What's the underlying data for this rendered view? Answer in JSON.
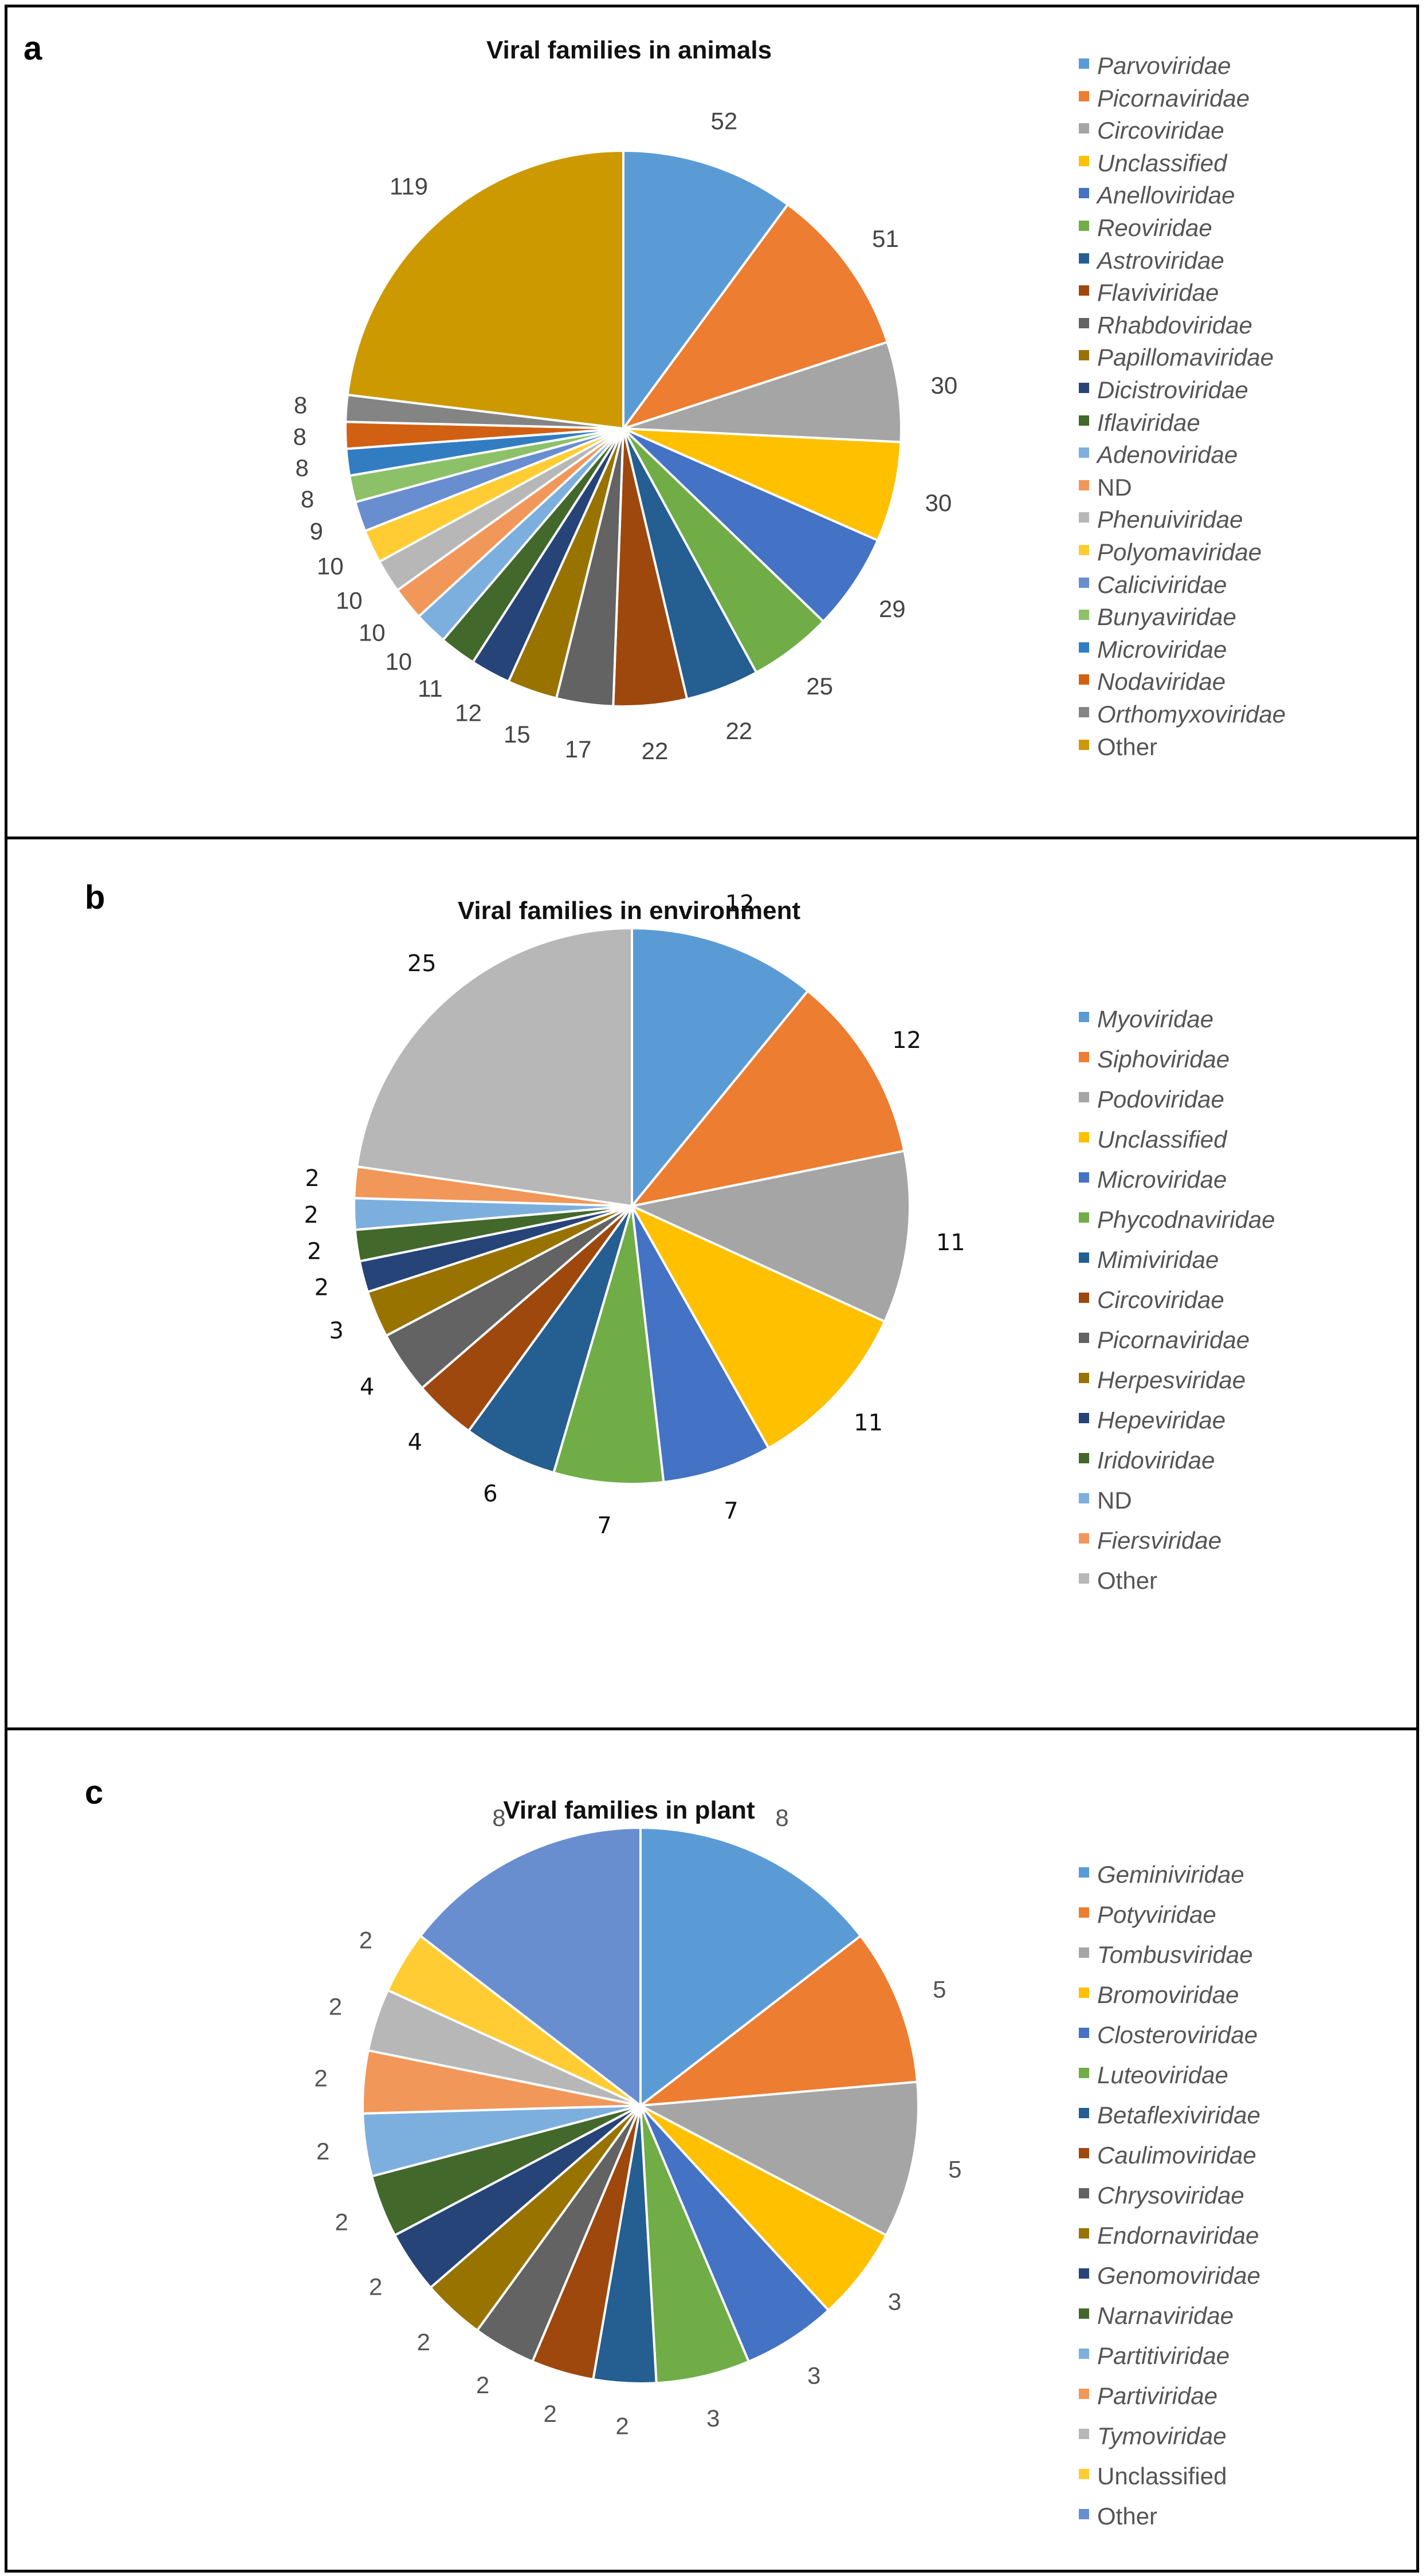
{
  "chart_data": [
    {
      "panel": "a",
      "type": "pie",
      "title": "Viral families in animals",
      "legend_position": "right",
      "slices": [
        {
          "label": "Parvoviridae",
          "value": 52,
          "color": "#5B9BD5",
          "italic": true
        },
        {
          "label": "Picornaviridae",
          "value": 51,
          "color": "#ED7D31",
          "italic": true
        },
        {
          "label": "Circoviridae",
          "value": 30,
          "color": "#A5A5A5",
          "italic": true
        },
        {
          "label": "Unclassified",
          "value": 30,
          "color": "#FFC000",
          "italic": true
        },
        {
          "label": "Anelloviridae",
          "value": 29,
          "color": "#4472C4",
          "italic": true
        },
        {
          "label": "Reoviridae",
          "value": 25,
          "color": "#70AD47",
          "italic": true
        },
        {
          "label": "Astroviridae",
          "value": 22,
          "color": "#255E91",
          "italic": true
        },
        {
          "label": "Flaviviridae",
          "value": 22,
          "color": "#9E480E",
          "italic": true
        },
        {
          "label": "Rhabdoviridae",
          "value": 17,
          "color": "#636363",
          "italic": true
        },
        {
          "label": "Papillomaviridae",
          "value": 15,
          "color": "#997300",
          "italic": true
        },
        {
          "label": "Dicistroviridae",
          "value": 12,
          "color": "#264478",
          "italic": true
        },
        {
          "label": "Iflaviridae",
          "value": 11,
          "color": "#43682B",
          "italic": true
        },
        {
          "label": "Adenoviridae",
          "value": 10,
          "color": "#7CAFDD",
          "italic": true
        },
        {
          "label": "ND",
          "value": 10,
          "color": "#F1975A",
          "italic": false
        },
        {
          "label": "Phenuiviridae",
          "value": 10,
          "color": "#B7B7B7",
          "italic": true
        },
        {
          "label": "Polyomaviridae",
          "value": 10,
          "color": "#FFCD33",
          "italic": true
        },
        {
          "label": "Caliciviridae",
          "value": 9,
          "color": "#698ED0",
          "italic": true
        },
        {
          "label": "Bunyaviridae",
          "value": 8,
          "color": "#8CC168",
          "italic": true
        },
        {
          "label": "Microviridae",
          "value": 8,
          "color": "#327DC2",
          "italic": true
        },
        {
          "label": "Nodaviridae",
          "value": 8,
          "color": "#D26012",
          "italic": true
        },
        {
          "label": "Orthomyxoviridae",
          "value": 8,
          "color": "#848484",
          "italic": true
        },
        {
          "label": "Other",
          "value": 119,
          "color": "#CC9900",
          "italic": false
        }
      ]
    },
    {
      "panel": "b",
      "type": "pie",
      "title": "Viral families in environment",
      "legend_position": "right",
      "slices": [
        {
          "label": "Myoviridae",
          "value": 12,
          "color": "#5B9BD5",
          "italic": true
        },
        {
          "label": "Siphoviridae",
          "value": 12,
          "color": "#ED7D31",
          "italic": true
        },
        {
          "label": "Podoviridae",
          "value": 11,
          "color": "#A5A5A5",
          "italic": true
        },
        {
          "label": "Unclassified",
          "value": 11,
          "color": "#FFC000",
          "italic": true
        },
        {
          "label": "Microviridae",
          "value": 7,
          "color": "#4472C4",
          "italic": true
        },
        {
          "label": "Phycodnaviridae",
          "value": 7,
          "color": "#70AD47",
          "italic": true
        },
        {
          "label": "Mimiviridae",
          "value": 6,
          "color": "#255E91",
          "italic": true
        },
        {
          "label": "Circoviridae",
          "value": 4,
          "color": "#9E480E",
          "italic": true
        },
        {
          "label": "Picornaviridae",
          "value": 4,
          "color": "#636363",
          "italic": true
        },
        {
          "label": "Herpesviridae",
          "value": 3,
          "color": "#997300",
          "italic": true
        },
        {
          "label": "Hepeviridae",
          "value": 2,
          "color": "#264478",
          "italic": true
        },
        {
          "label": "Iridoviridae",
          "value": 2,
          "color": "#43682B",
          "italic": true
        },
        {
          "label": "ND",
          "value": 2,
          "color": "#7CAFDD",
          "italic": false
        },
        {
          "label": "Fiersviridae",
          "value": 2,
          "color": "#F1975A",
          "italic": true
        },
        {
          "label": "Other",
          "value": 25,
          "color": "#B7B7B7",
          "italic": false
        }
      ]
    },
    {
      "panel": "c",
      "type": "pie",
      "title": "Viral families in plant",
      "legend_position": "right",
      "slices": [
        {
          "label": "Geminiviridae",
          "value": 8,
          "color": "#5B9BD5",
          "italic": true
        },
        {
          "label": "Potyviridae",
          "value": 5,
          "color": "#ED7D31",
          "italic": true
        },
        {
          "label": "Tombusviridae",
          "value": 5,
          "color": "#A5A5A5",
          "italic": true
        },
        {
          "label": "Bromoviridae",
          "value": 3,
          "color": "#FFC000",
          "italic": true
        },
        {
          "label": "Closteroviridae",
          "value": 3,
          "color": "#4472C4",
          "italic": true
        },
        {
          "label": "Luteoviridae",
          "value": 3,
          "color": "#70AD47",
          "italic": true
        },
        {
          "label": "Betaflexiviridae",
          "value": 2,
          "color": "#255E91",
          "italic": true
        },
        {
          "label": "Caulimoviridae",
          "value": 2,
          "color": "#9E480E",
          "italic": true
        },
        {
          "label": "Chrysoviridae",
          "value": 2,
          "color": "#636363",
          "italic": true
        },
        {
          "label": "Endornaviridae",
          "value": 2,
          "color": "#997300",
          "italic": true
        },
        {
          "label": "Genomoviridae",
          "value": 2,
          "color": "#264478",
          "italic": true
        },
        {
          "label": "Narnaviridae",
          "value": 2,
          "color": "#43682B",
          "italic": true
        },
        {
          "label": "Partitiviridae",
          "value": 2,
          "color": "#7CAFDD",
          "italic": true
        },
        {
          "label": "Partiviridae",
          "value": 2,
          "color": "#F1975A",
          "italic": true
        },
        {
          "label": "Tymoviridae",
          "value": 2,
          "color": "#B7B7B7",
          "italic": true
        },
        {
          "label": "Unclassified",
          "value": 2,
          "color": "#FFCD33",
          "italic": false
        },
        {
          "label": "Other",
          "value": 8,
          "color": "#698ED0",
          "italic": false
        }
      ]
    }
  ],
  "panels": {
    "a": {
      "letter": "a"
    },
    "b": {
      "letter": "b"
    },
    "c": {
      "letter": "c"
    }
  }
}
